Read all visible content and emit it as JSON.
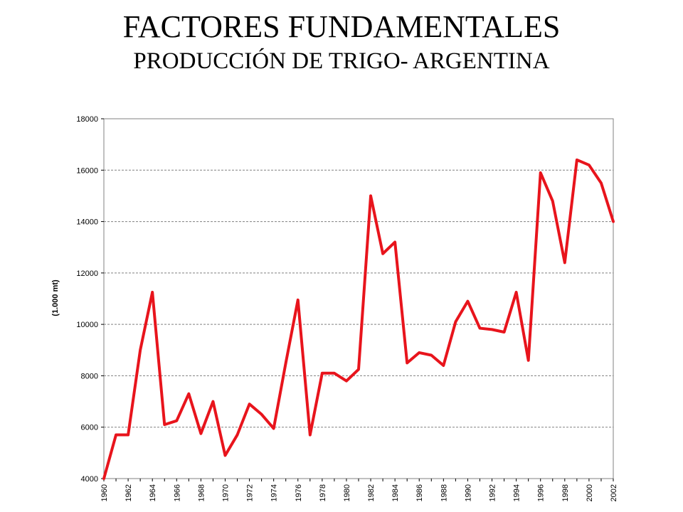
{
  "header": {
    "title": "FACTORES FUNDAMENTALES",
    "subtitle": "PRODUCCIÓN DE TRIGO- ARGENTINA"
  },
  "chart_data": {
    "type": "line",
    "title": "",
    "xlabel": "",
    "ylabel": "(1.000 mt)",
    "ylim": [
      4000,
      18000
    ],
    "xlim": [
      1960,
      2002
    ],
    "y_ticks": [
      4000,
      6000,
      8000,
      10000,
      12000,
      14000,
      16000,
      18000
    ],
    "x_tick_labels": [
      "1960",
      "1962",
      "1964",
      "1966",
      "1968",
      "1970",
      "1972",
      "1974",
      "1976",
      "1978",
      "1980",
      "1982",
      "1984",
      "1986",
      "1988",
      "1990",
      "1992",
      "1994",
      "1996",
      "1998",
      "2000",
      "2002"
    ],
    "grid": true,
    "line_color": "#e8141c",
    "grid_color": "#808080",
    "x": [
      1960,
      1961,
      1962,
      1963,
      1964,
      1965,
      1966,
      1967,
      1968,
      1969,
      1970,
      1971,
      1972,
      1973,
      1974,
      1975,
      1976,
      1977,
      1978,
      1979,
      1980,
      1981,
      1982,
      1983,
      1984,
      1985,
      1986,
      1987,
      1988,
      1989,
      1990,
      1991,
      1992,
      1993,
      1994,
      1995,
      1996,
      1997,
      1998,
      1999,
      2000,
      2001,
      2002
    ],
    "values": [
      4000,
      5700,
      5700,
      9000,
      11250,
      6100,
      6250,
      7300,
      5750,
      7000,
      4900,
      5700,
      6900,
      6500,
      5950,
      8500,
      10950,
      5700,
      8100,
      8100,
      7800,
      8250,
      15000,
      12750,
      13200,
      8500,
      8900,
      8800,
      8400,
      10100,
      10900,
      9850,
      9800,
      9700,
      11250,
      8600,
      15900,
      14800,
      12400,
      16400,
      16200,
      15500,
      14000
    ]
  }
}
